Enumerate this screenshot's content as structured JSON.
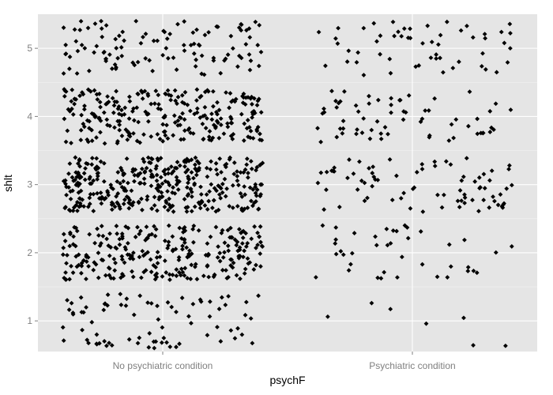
{
  "chart_data": {
    "type": "scatter",
    "jitter": true,
    "xlabel": "psychF",
    "ylabel": "shlt",
    "categories": [
      "No psychiatric condition",
      "Psychiatric condition"
    ],
    "ylim": [
      0.55,
      5.5
    ],
    "yticks": [
      1,
      2,
      3,
      4,
      5
    ],
    "grid": true,
    "legend": "none",
    "colors": {
      "panel": "#e5e5e5",
      "grid_major": "#ffffff",
      "grid_minor": "#f2f2f2",
      "point": "#000000",
      "tick_label": "#7f7f7f"
    },
    "approx_counts": [
      {
        "category": "No psychiatric condition",
        "counts": {
          "1": 80,
          "2": 260,
          "3": 360,
          "4": 260,
          "5": 110
        }
      },
      {
        "category": "Psychiatric condition",
        "counts": {
          "1": 7,
          "2": 40,
          "3": 80,
          "4": 65,
          "5": 55
        }
      }
    ]
  }
}
